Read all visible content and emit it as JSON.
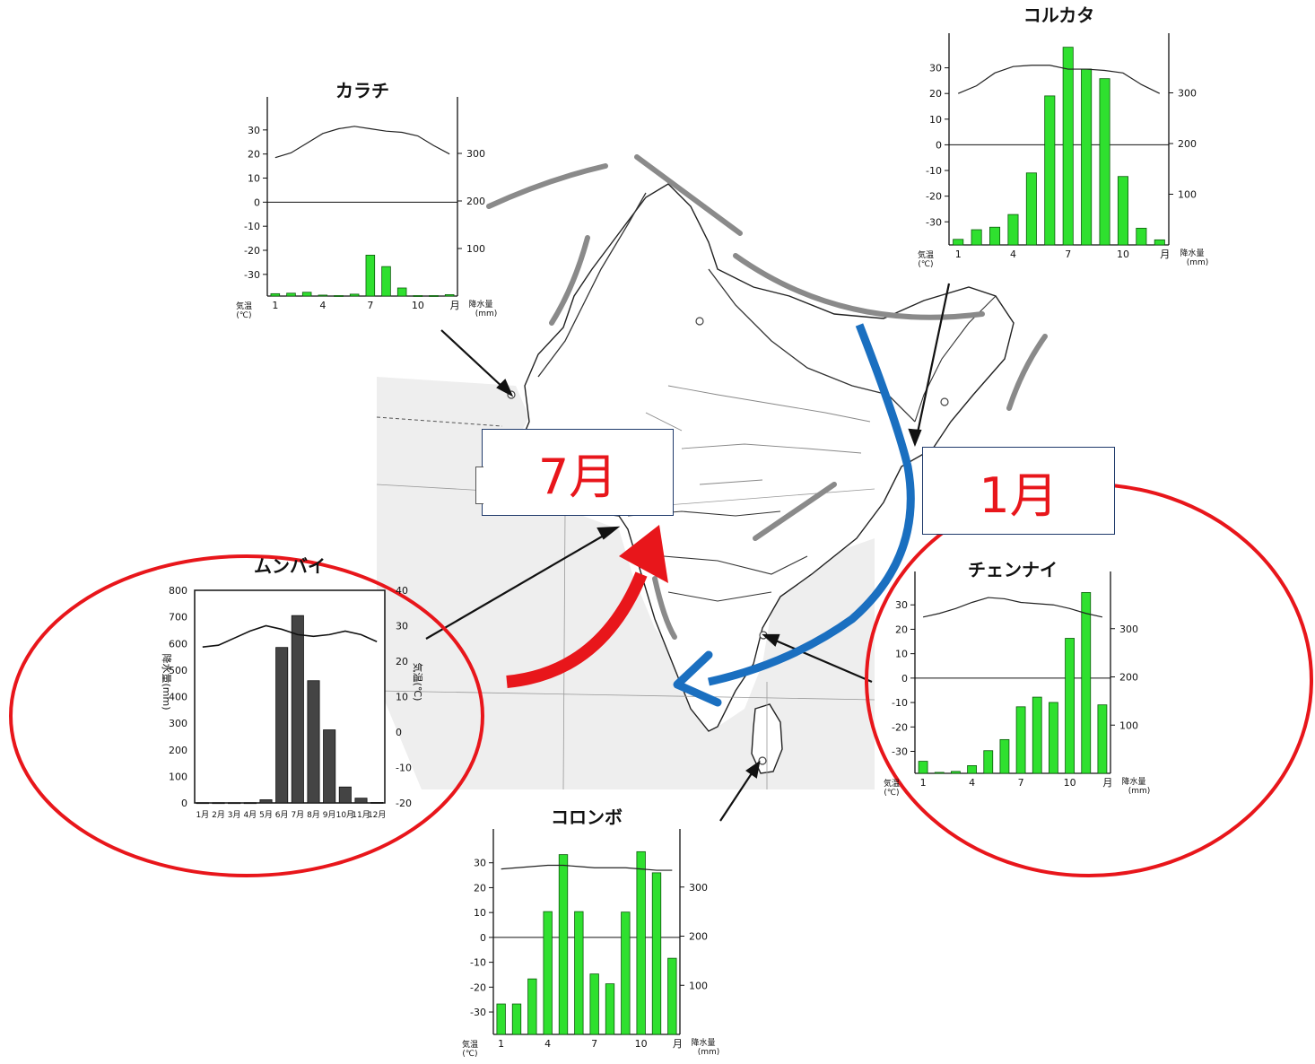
{
  "colors": {
    "bar_green": "#2fe02f",
    "bar_dark": "#444444",
    "circle_red": "#e8161b",
    "arrow_red": "#e8161b",
    "arrow_blue": "#1a6fc0",
    "label_red": "#e8161b",
    "map_sea": "#eeeeee",
    "mountain_gray": "#8a8a8a"
  },
  "labels": {
    "july": "7月",
    "january": "1月"
  },
  "axis_text": {
    "temp_cjk": "気温",
    "temp_unit": "(℃)",
    "precip_cjk": "降水量",
    "precip_unit": "(mm)",
    "month": "月"
  },
  "chart_data": [
    {
      "type": "bar",
      "id": "karachi",
      "title": "カラチ",
      "x_ticks": [
        "1",
        "4",
        "7",
        "10"
      ],
      "temp_ticks": [
        "30",
        "20",
        "10",
        "0",
        "-10",
        "-20",
        "-30"
      ],
      "precip_ticks": [
        "300",
        "200",
        "100"
      ],
      "temperature": [
        18.5,
        20.5,
        24.5,
        28.5,
        30.5,
        31.5,
        30.5,
        29.5,
        29,
        27.5,
        23.5,
        20
      ],
      "precipitation": [
        5,
        6,
        8,
        2,
        1,
        4,
        86,
        62,
        17,
        1,
        1,
        3
      ],
      "temp_range": [
        -39,
        40
      ],
      "precip_range": [
        0,
        400
      ]
    },
    {
      "type": "bar",
      "id": "kolkata",
      "title": "コルカタ",
      "x_ticks": [
        "1",
        "4",
        "7",
        "10"
      ],
      "temp_ticks": [
        "30",
        "20",
        "10",
        "0",
        "-10",
        "-20",
        "-30"
      ],
      "precip_ticks": [
        "300",
        "200",
        "100"
      ],
      "temperature": [
        20,
        23,
        28,
        30.5,
        31,
        31,
        29.5,
        29.5,
        29,
        28,
        23.5,
        20
      ],
      "precipitation": [
        11,
        30,
        35,
        60,
        142,
        294,
        390,
        347,
        328,
        135,
        33,
        10
      ],
      "temp_range": [
        -39,
        40
      ],
      "precip_range": [
        0,
        400
      ]
    },
    {
      "type": "bar",
      "id": "mumbai",
      "title": "ムンバイ",
      "ylabel": "降水量(mm)",
      "y2label": "気温(℃)",
      "x_ticks": [
        "1月",
        "2月",
        "3月",
        "4月",
        "5月",
        "6月",
        "7月",
        "8月",
        "9月",
        "10月",
        "11月",
        "12月"
      ],
      "precip_ticks": [
        "800",
        "700",
        "600",
        "500",
        "400",
        "300",
        "200",
        "100",
        "0"
      ],
      "temp_ticks": [
        "40",
        "30",
        "20",
        "10",
        "0",
        "-10",
        "-20"
      ],
      "precipitation": [
        1,
        1,
        1,
        1,
        12,
        585,
        705,
        460,
        275,
        60,
        18,
        2
      ],
      "temperature": [
        24,
        24.5,
        26.5,
        28.5,
        30,
        29,
        27.5,
        27,
        27.5,
        28.5,
        27.5,
        25.5
      ],
      "precip_range": [
        0,
        800
      ],
      "temp_range": [
        -20,
        40
      ]
    },
    {
      "type": "bar",
      "id": "chennai",
      "title": "チェンナイ",
      "x_ticks": [
        "1",
        "4",
        "7",
        "10"
      ],
      "temp_ticks": [
        "30",
        "20",
        "10",
        "0",
        "-10",
        "-20",
        "-30"
      ],
      "precip_ticks": [
        "300",
        "200",
        "100"
      ],
      "temperature": [
        25,
        26.5,
        28.5,
        31,
        33,
        32.5,
        31,
        30.5,
        30,
        28.5,
        26.5,
        25
      ],
      "precipitation": [
        25,
        2,
        4,
        16,
        47,
        70,
        138,
        158,
        147,
        280,
        375,
        142
      ],
      "temp_range": [
        -39,
        40
      ],
      "precip_range": [
        0,
        400
      ]
    },
    {
      "type": "bar",
      "id": "colombo",
      "title": "コロンボ",
      "x_ticks": [
        "1",
        "4",
        "7",
        "10"
      ],
      "temp_ticks": [
        "30",
        "20",
        "10",
        "0",
        "-10",
        "-20",
        "-30"
      ],
      "precip_ticks": [
        "300",
        "200",
        "100"
      ],
      "temperature": [
        27.5,
        28,
        28.5,
        29,
        29,
        28.5,
        28,
        28,
        28,
        27.5,
        27,
        27
      ],
      "precipitation": [
        62,
        62,
        113,
        250,
        366,
        250,
        123,
        103,
        249,
        372,
        329,
        155
      ],
      "temp_range": [
        -39,
        40
      ],
      "precip_range": [
        0,
        400
      ]
    }
  ]
}
